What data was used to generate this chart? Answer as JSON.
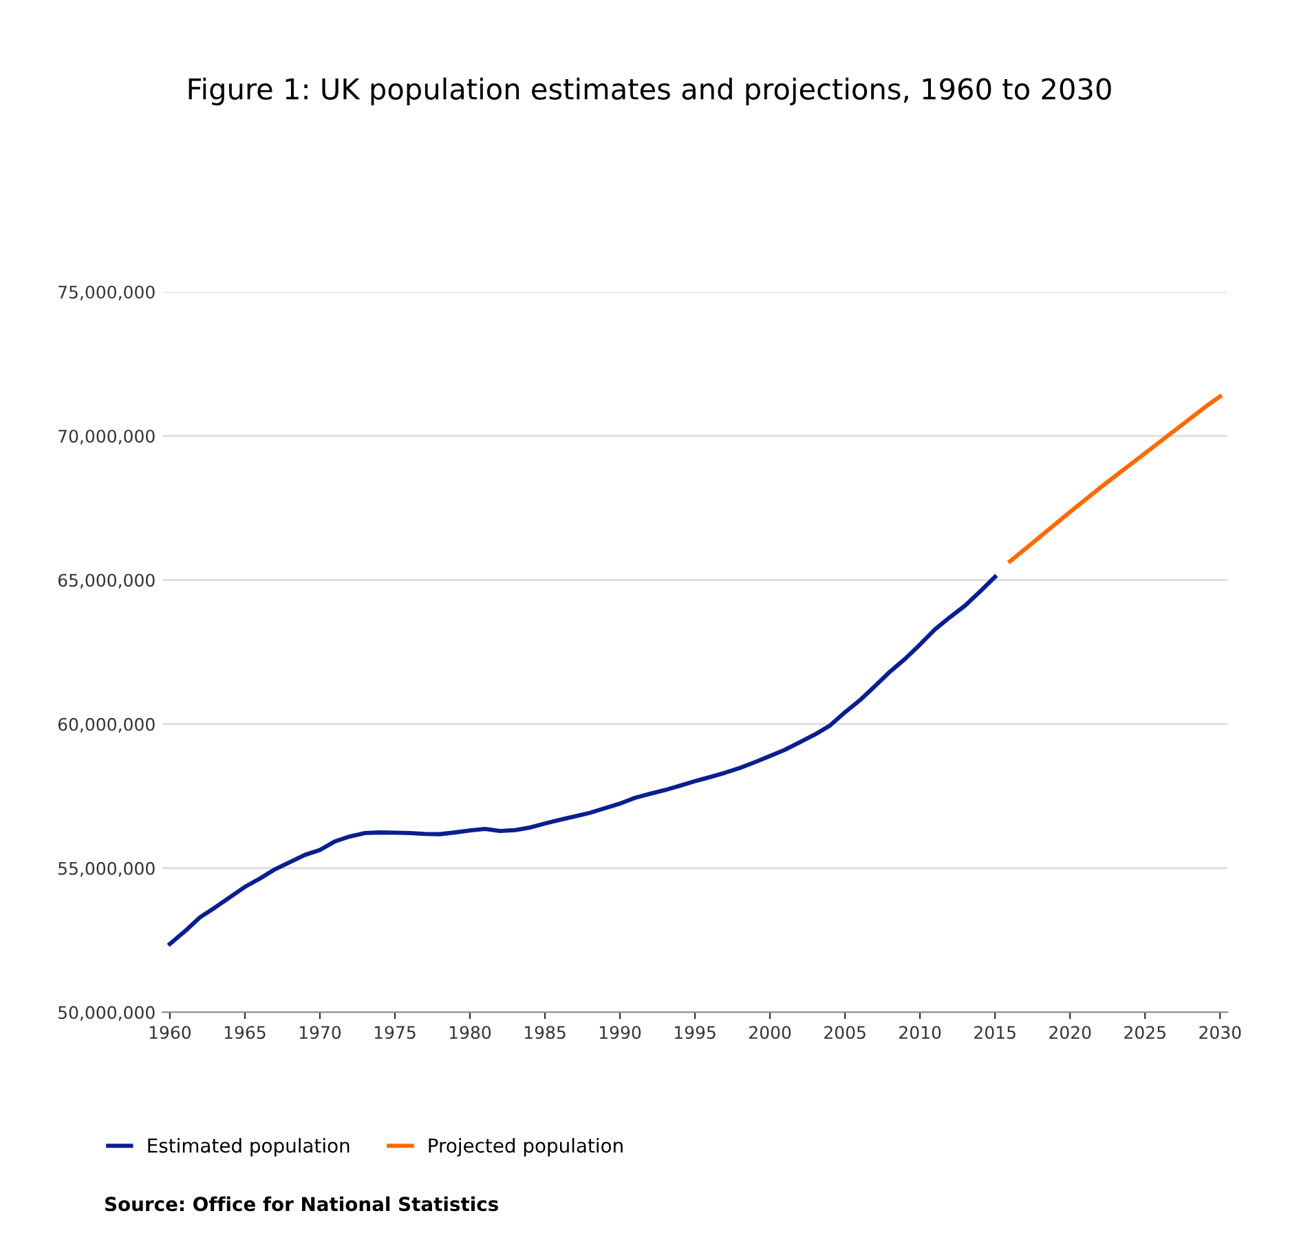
{
  "chart_data": {
    "type": "line",
    "title": "Figure 1: UK population estimates and projections, 1960 to 2030",
    "series": [
      {
        "name": "Estimated population",
        "color": "#0a1f8f",
        "x": [
          1960,
          1961,
          1962,
          1963,
          1964,
          1965,
          1966,
          1967,
          1968,
          1969,
          1970,
          1971,
          1972,
          1973,
          1974,
          1975,
          1976,
          1977,
          1978,
          1979,
          1980,
          1981,
          1982,
          1983,
          1984,
          1985,
          1986,
          1987,
          1988,
          1989,
          1990,
          1991,
          1992,
          1993,
          1994,
          1995,
          1996,
          1997,
          1998,
          1999,
          2000,
          2001,
          2002,
          2003,
          2004,
          2005,
          2006,
          2007,
          2008,
          2009,
          2010,
          2011,
          2012,
          2013,
          2014,
          2015
        ],
        "values": [
          52370000,
          52810000,
          53290000,
          53630000,
          53990000,
          54350000,
          54640000,
          54960000,
          55210000,
          55460000,
          55630000,
          55930000,
          56100000,
          56220000,
          56240000,
          56230000,
          56220000,
          56190000,
          56180000,
          56240000,
          56310000,
          56360000,
          56290000,
          56320000,
          56410000,
          56550000,
          56680000,
          56800000,
          56920000,
          57080000,
          57240000,
          57440000,
          57580000,
          57710000,
          57860000,
          58020000,
          58160000,
          58310000,
          58480000,
          58680000,
          58890000,
          59110000,
          59370000,
          59640000,
          59950000,
          60410000,
          60830000,
          61320000,
          61820000,
          62260000,
          62760000,
          63290000,
          63710000,
          64110000,
          64600000,
          65110000
        ]
      },
      {
        "name": "Projected population",
        "color": "#ff6a00",
        "x": [
          2016,
          2017,
          2018,
          2019,
          2020,
          2021,
          2022,
          2023,
          2024,
          2025,
          2026,
          2027,
          2028,
          2029,
          2030
        ],
        "values": [
          65650000,
          66070000,
          66500000,
          66930000,
          67360000,
          67780000,
          68200000,
          68600000,
          69000000,
          69400000,
          69800000,
          70200000,
          70600000,
          71000000,
          71370000
        ]
      }
    ],
    "xlim": [
      1959.5,
      2030.5
    ],
    "xticks": [
      1960,
      1965,
      1970,
      1975,
      1980,
      1985,
      1990,
      1995,
      2000,
      2005,
      2010,
      2015,
      2020,
      2025,
      2030
    ],
    "ylim": [
      50000000,
      75000000
    ],
    "yticks": [
      {
        "value": 50000000,
        "label": "50,000,000"
      },
      {
        "value": 55000000,
        "label": "55,000,000"
      },
      {
        "value": 60000000,
        "label": "60,000,000"
      },
      {
        "value": 65000000,
        "label": "65,000,000"
      },
      {
        "value": 70000000,
        "label": "70,000,000"
      },
      {
        "value": 75000000,
        "label": "75,000,000"
      }
    ],
    "grid": "y",
    "legend": "bottom left",
    "marker": "none",
    "line_style": "solid",
    "annotations": [
      "Source: Office for National Statistics"
    ]
  }
}
